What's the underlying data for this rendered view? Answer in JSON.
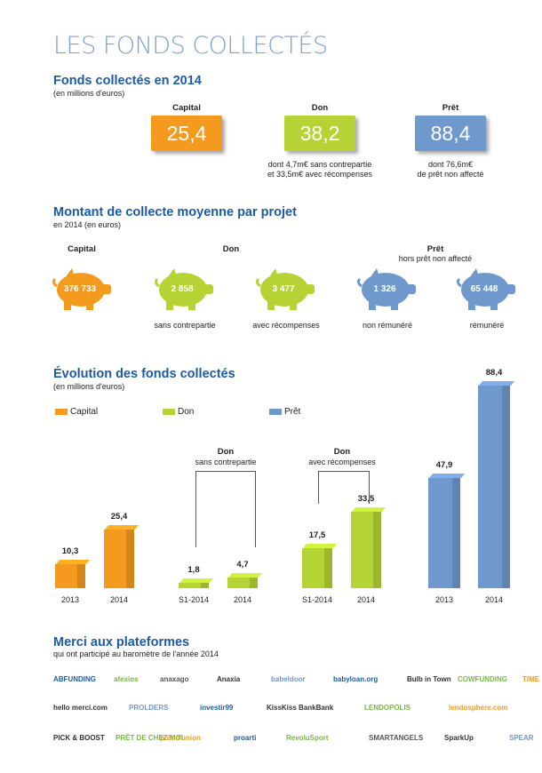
{
  "page_title": "LES FONDS COLLECTÉS",
  "section1": {
    "heading": "Fonds collectés en 2014",
    "subheading": "(en millions d'euros)",
    "items": [
      {
        "label": "Capital",
        "value": "25,4",
        "note1": "",
        "note2": "",
        "color": "#f39a1f"
      },
      {
        "label": "Don",
        "value": "38,2",
        "note1": "dont 4,7m€ sans contrepartie",
        "note2": "et 33,5m€ avec récompenses",
        "color": "#b5d334"
      },
      {
        "label": "Prêt",
        "value": "88,4",
        "note1": "dont 76,6m€",
        "note2": "de prêt non affecté",
        "color": "#6f98cc"
      }
    ]
  },
  "section2": {
    "heading": "Montant de collecte moyenne par projet",
    "subheading": "en 2014 (en euros)",
    "group_capital": "Capital",
    "group_don": "Don",
    "group_pret": "Prêt",
    "group_pret_sub": "hors prêt non affecté",
    "pigs": [
      {
        "value": "376 733",
        "label": "",
        "color": "#f39a1f"
      },
      {
        "value": "2 858",
        "label": "sans contrepartie",
        "color": "#b5d334"
      },
      {
        "value": "3 477",
        "label": "avec récompenses",
        "color": "#b5d334"
      },
      {
        "value": "1 326",
        "label": "non rémunéré",
        "color": "#6f98cc"
      },
      {
        "value": "65 448",
        "label": "rémunéré",
        "color": "#6f98cc"
      }
    ]
  },
  "section3": {
    "heading": "Évolution des fonds collectés",
    "subheading": "(en millions d'euros)",
    "legend": [
      {
        "name": "Capital",
        "color": "#f39a1f"
      },
      {
        "name": "Don",
        "color": "#b5d334"
      },
      {
        "name": "Prêt",
        "color": "#6f98cc"
      }
    ],
    "group_don1_title": "Don",
    "group_don1_sub": "sans contrepartie",
    "group_don2_title": "Don",
    "group_don2_sub": "avec récompenses"
  },
  "chart_data": {
    "type": "bar",
    "title": "Évolution des fonds collectés",
    "ylabel": "",
    "groups": [
      {
        "name": "Capital",
        "categories": [
          "2013",
          "2014"
        ],
        "values": [
          10.3,
          25.4
        ],
        "labels": [
          "10,3",
          "25,4"
        ]
      },
      {
        "name": "Don sans contrepartie",
        "categories": [
          "S1-2014",
          "2014"
        ],
        "values": [
          1.8,
          4.7
        ],
        "labels": [
          "1,8",
          "4,7"
        ]
      },
      {
        "name": "Don avec récompenses",
        "categories": [
          "S1-2014",
          "2014"
        ],
        "values": [
          17.5,
          33.5
        ],
        "labels": [
          "17,5",
          "33,5"
        ]
      },
      {
        "name": "Prêt",
        "categories": [
          "2013",
          "2014"
        ],
        "values": [
          47.9,
          88.4
        ],
        "labels": [
          "47,9",
          "88,4"
        ]
      }
    ]
  },
  "section4": {
    "heading": "Merci aux plateformes",
    "subheading": "qui ont participé au baromètre de l'année 2014",
    "logos_row1": [
      "ABFUNDING",
      "afexios",
      "anaxago",
      "Anaxia",
      "babeldoor",
      "babyloan.org",
      "Bulb in Town",
      "COWFUNDING",
      "TIME"
    ],
    "logos_row2": [
      "hello merci.com",
      "PROLDERS",
      "investir99",
      "KissKiss BankBank",
      "LENDOPOLIS",
      "lendosphere.com"
    ],
    "logos_row3": [
      "PICK & BOOST",
      "PRÊT DE CHEZ MOI",
      "prêt d'union",
      "proarti",
      "RevoluSport",
      "SMARTANGELS",
      "SparkUp",
      "SPEAR"
    ]
  }
}
